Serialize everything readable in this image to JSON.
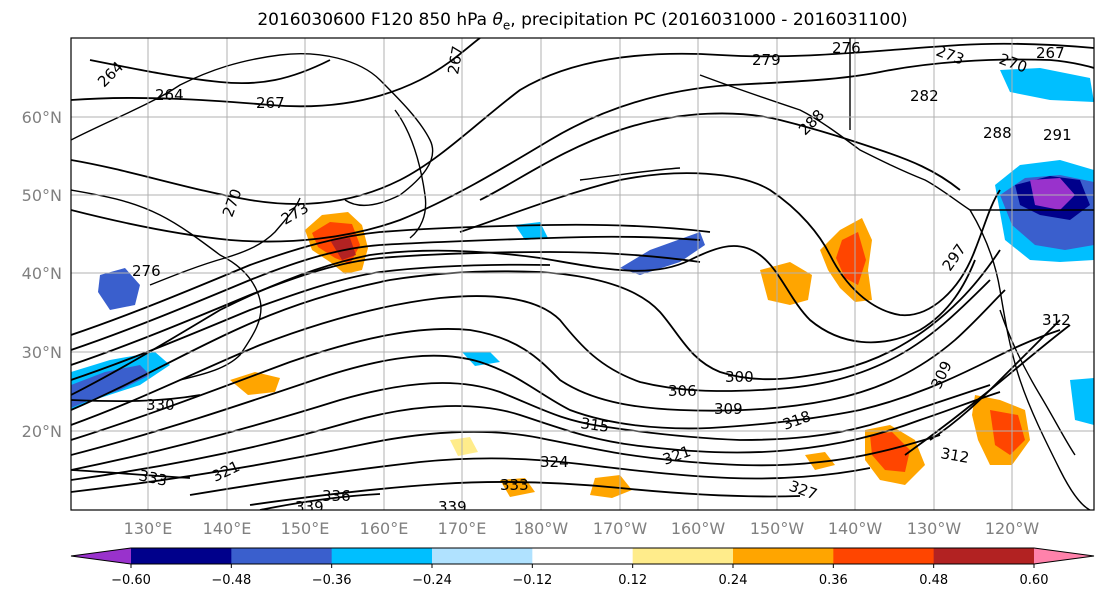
{
  "title_prefix": "2016030600 F120 850 hPa ",
  "title_symbol": "θ",
  "title_sub": "e",
  "title_suffix": ", precipitation PC (2016031000 - 2016031100)",
  "lat_labels": [
    "20°N",
    "30°N",
    "40°N",
    "50°N",
    "60°N"
  ],
  "lon_labels": [
    "130°E",
    "140°E",
    "150°E",
    "160°E",
    "170°E",
    "180°W",
    "170°W",
    "160°W",
    "150°W",
    "140°W",
    "130°W",
    "120°W"
  ],
  "colorbar": {
    "colors": [
      "#9932cc",
      "#00008b",
      "#3a5fcd",
      "#00bfff",
      "#b0e2ff",
      "#ffffff",
      "#ffec8b",
      "#ffa500",
      "#ff4500",
      "#b22222",
      "#ff82ab"
    ],
    "ticks": [
      "−0.60",
      "−0.48",
      "−0.36",
      "−0.24",
      "−0.12",
      "0.12",
      "0.24",
      "0.36",
      "0.48",
      "0.60"
    ]
  },
  "contour_labels": [
    "264",
    "264",
    "267",
    "267",
    "273",
    "270",
    "276",
    "276",
    "279",
    "273",
    "270",
    "267",
    "282",
    "288",
    "288",
    "291",
    "297",
    "300",
    "306",
    "309",
    "312",
    "312",
    "315",
    "318",
    "321",
    "324",
    "327",
    "330",
    "333",
    "336",
    "339",
    "339",
    "333",
    "321",
    "309"
  ],
  "colors": {
    "land": "#000000",
    "grid": "#b0b0b0",
    "ticklabel": "#808080"
  }
}
